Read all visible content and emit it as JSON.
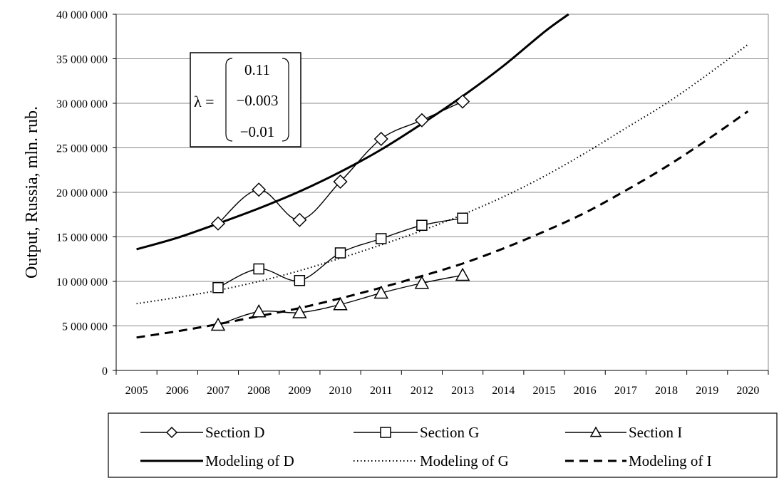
{
  "chart_data": {
    "type": "line",
    "ylabel": "Output,  Russia,  mln. rub.",
    "xlabel": "",
    "title": "",
    "categories": [
      "2005",
      "2006",
      "2007",
      "2008",
      "2009",
      "2010",
      "2011",
      "2012",
      "2013",
      "2014",
      "2015",
      "2016",
      "2017",
      "2018",
      "2019",
      "2020"
    ],
    "ylim": [
      0,
      40000000
    ],
    "y_ticks": [
      0,
      5000000,
      10000000,
      15000000,
      20000000,
      25000000,
      30000000,
      35000000,
      40000000
    ],
    "y_tick_labels": [
      "0",
      "5 000 000",
      "10 000 000",
      "15 000 000",
      "20 000 000",
      "25 000 000",
      "30 000 000",
      "35 000 000",
      "40 000 000"
    ],
    "grid": "horizontal",
    "legend_position": "bottom",
    "series": [
      {
        "name": "Section D",
        "marker": "diamond",
        "line": "solid-thin",
        "x": [
          2007,
          2008,
          2009,
          2010,
          2011,
          2012,
          2013
        ],
        "values": [
          16500000,
          20300000,
          16900000,
          21200000,
          26000000,
          28100000,
          30200000
        ]
      },
      {
        "name": "Section G",
        "marker": "square",
        "line": "solid-thin",
        "x": [
          2007,
          2008,
          2009,
          2010,
          2011,
          2012,
          2013
        ],
        "values": [
          9300000,
          11400000,
          10100000,
          13200000,
          14800000,
          16300000,
          17100000
        ]
      },
      {
        "name": "Section I",
        "marker": "triangle",
        "line": "solid-thin",
        "x": [
          2007,
          2008,
          2009,
          2010,
          2011,
          2012,
          2013
        ],
        "values": [
          5100000,
          6600000,
          6500000,
          7400000,
          8700000,
          9800000,
          10700000
        ]
      },
      {
        "name": "Modeling of D",
        "marker": "none",
        "line": "solid-thick",
        "x": [
          2005,
          2006,
          2007,
          2008,
          2009,
          2010,
          2011,
          2012,
          2013,
          2014,
          2015,
          2015.6
        ],
        "values": [
          13600000,
          14900000,
          16500000,
          18200000,
          20100000,
          22300000,
          24800000,
          27700000,
          30800000,
          34200000,
          38000000,
          40000000
        ]
      },
      {
        "name": "Modeling of G",
        "marker": "none",
        "line": "dotted",
        "x": [
          2005,
          2006,
          2007,
          2008,
          2009,
          2010,
          2011,
          2012,
          2013,
          2014,
          2015,
          2016,
          2017,
          2018,
          2019,
          2020
        ],
        "values": [
          7500000,
          8200000,
          9000000,
          10000000,
          11200000,
          12600000,
          14100000,
          15700000,
          17500000,
          19500000,
          21800000,
          24400000,
          27200000,
          30000000,
          33200000,
          36600000
        ]
      },
      {
        "name": "Modeling of I",
        "marker": "none",
        "line": "dashed",
        "x": [
          2005,
          2006,
          2007,
          2008,
          2009,
          2010,
          2011,
          2012,
          2013,
          2014,
          2015,
          2016,
          2017,
          2018,
          2019,
          2020
        ],
        "values": [
          3700000,
          4400000,
          5200000,
          6100000,
          7000000,
          8100000,
          9300000,
          10600000,
          12000000,
          13700000,
          15600000,
          17700000,
          20200000,
          22900000,
          25900000,
          29100000
        ]
      }
    ],
    "annotation": {
      "lambda_label": "λ =",
      "vector": [
        "0.11",
        "−0.003",
        "−0.01"
      ]
    }
  }
}
